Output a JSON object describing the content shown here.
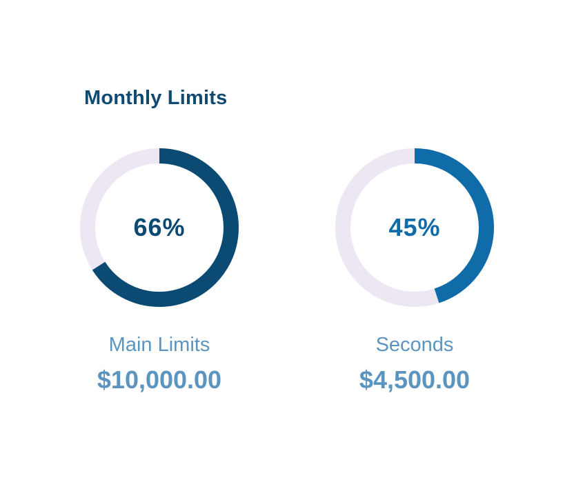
{
  "header": {
    "title": "Monthly Limits"
  },
  "colors": {
    "title": "#0f4a73",
    "track": "#ece7f3",
    "label": "#5b95bf",
    "amount": "#5b95bf"
  },
  "limits": [
    {
      "percent_label": "66%",
      "percent": 66,
      "progress_color": "#0b4a72",
      "percent_text_color": "#0b4a72",
      "label": "Main Limits",
      "amount": "$10,000.00"
    },
    {
      "percent_label": "45%",
      "percent": 45,
      "progress_color": "#0f6ca8",
      "percent_text_color": "#0f6ca8",
      "label": "Seconds",
      "amount": "$4,500.00"
    }
  ]
}
